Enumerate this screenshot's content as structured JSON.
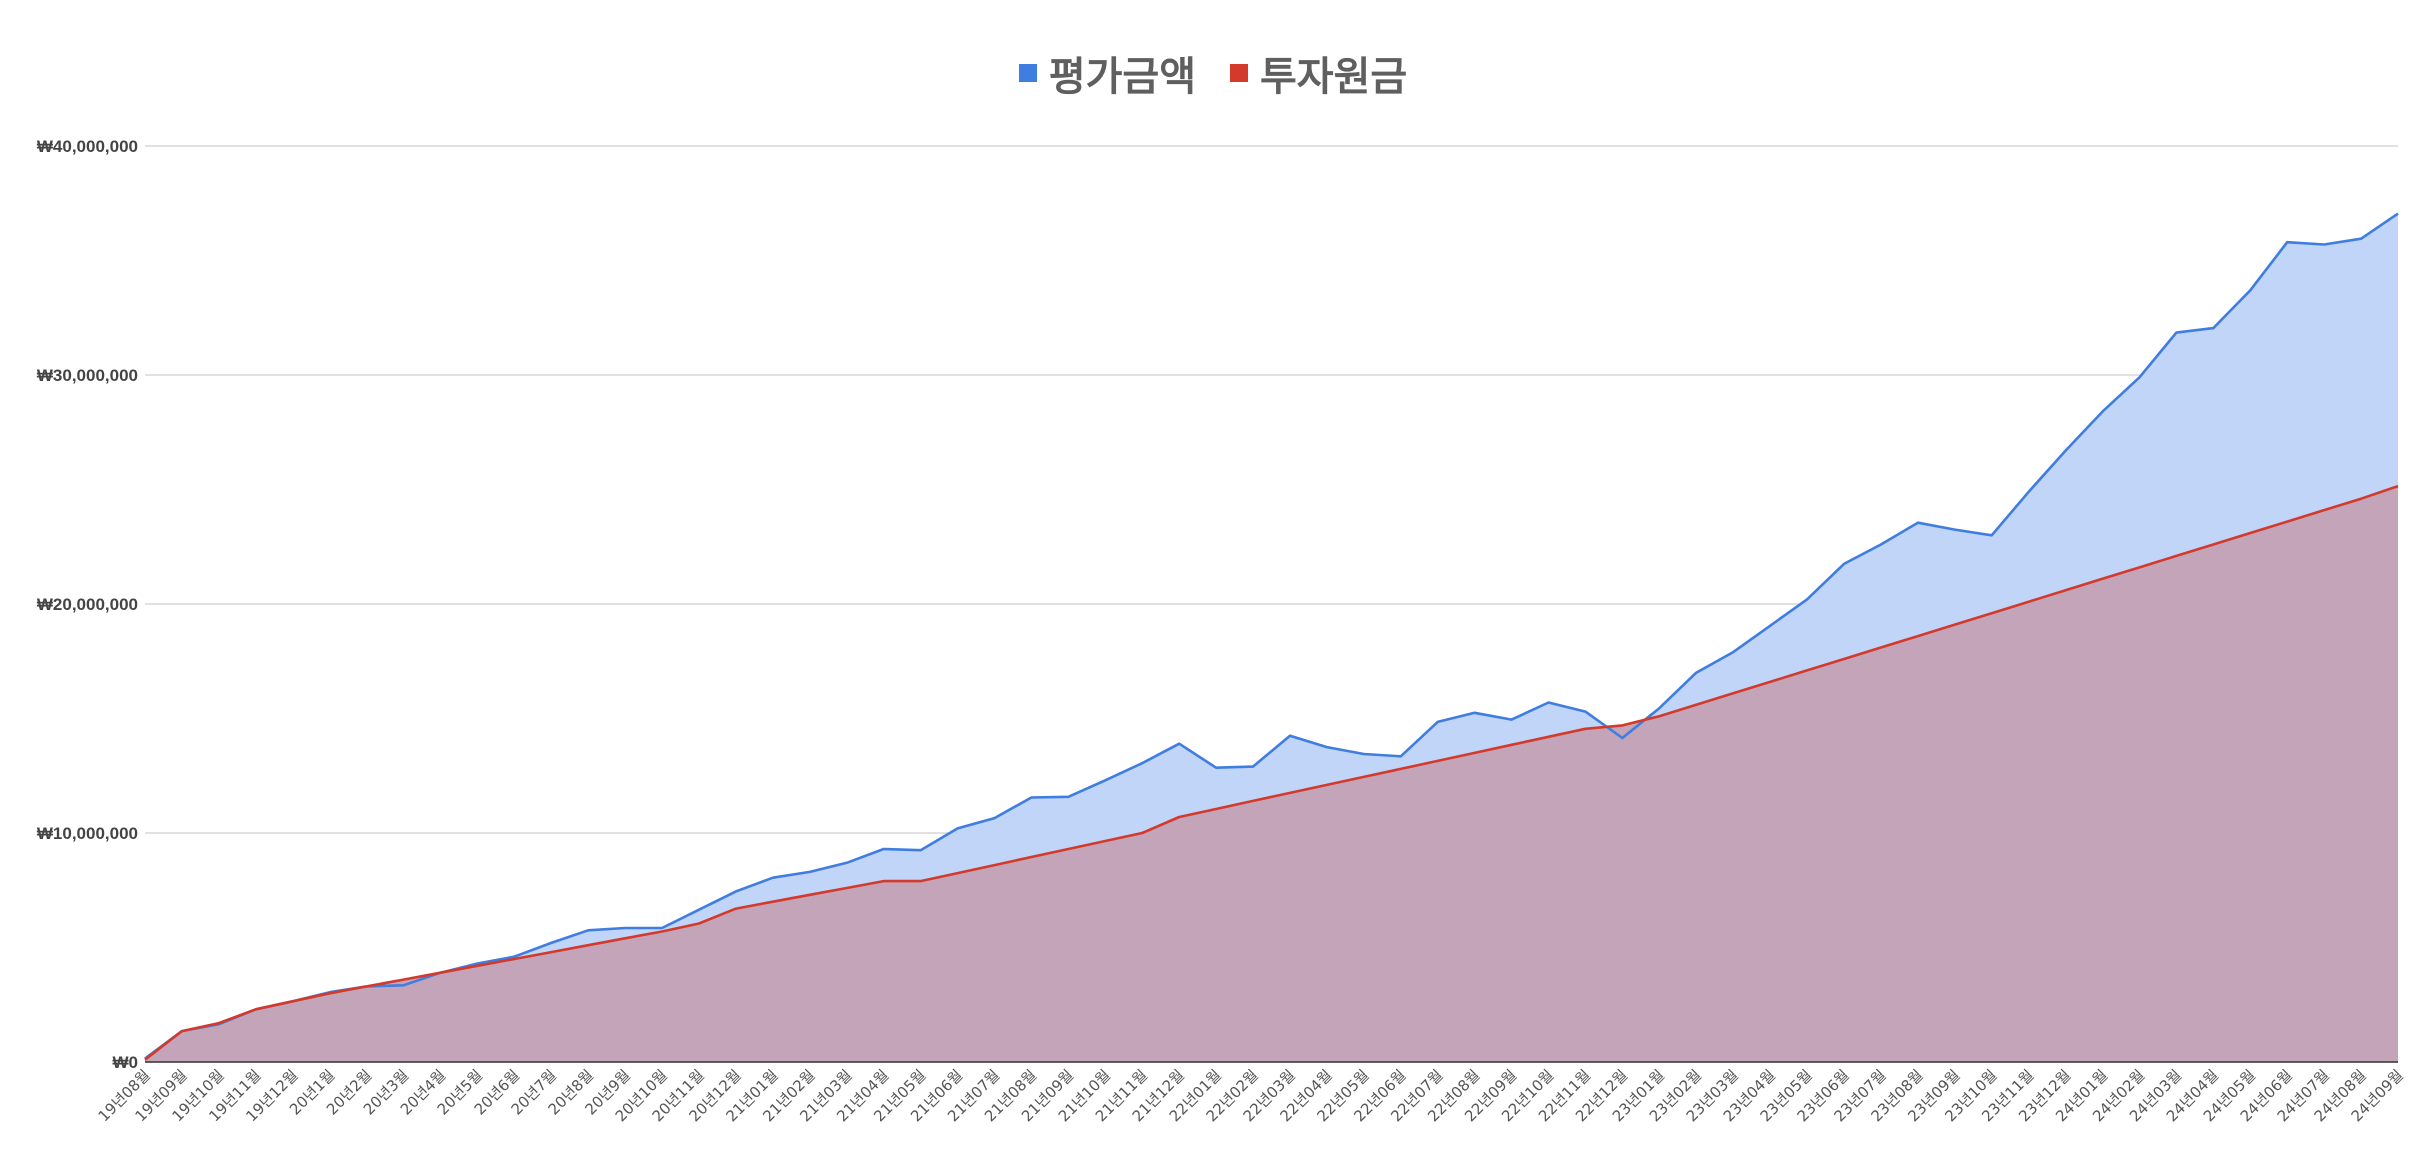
{
  "legend": {
    "series1_label": "평가금액",
    "series2_label": "투자원금"
  },
  "colors": {
    "series1_line": "#3f7de0",
    "series1_fill": "#c1d5f8",
    "series2_line": "#d33a2c",
    "series2_fill": "#c4a4b8",
    "grid": "#cfcfcf"
  },
  "chart_data": {
    "type": "area",
    "title": "",
    "xlabel": "",
    "ylabel": "",
    "ylim": [
      0,
      40000000
    ],
    "yticks": [
      0,
      10000000,
      20000000,
      30000000,
      40000000
    ],
    "ytick_labels": [
      "₩0",
      "₩10,000,000",
      "₩20,000,000",
      "₩30,000,000",
      "₩40,000,000"
    ],
    "grid": true,
    "legend_position": "top-center",
    "categories": [
      "19년08월",
      "19년09월",
      "19년10월",
      "19년11월",
      "19년12월",
      "20년1월",
      "20년2월",
      "20년3월",
      "20년4월",
      "20년5월",
      "20년6월",
      "20년7월",
      "20년8월",
      "20년9월",
      "20년10월",
      "20년11월",
      "20년12월",
      "21년01월",
      "21년02월",
      "21년03월",
      "21년04월",
      "21년05월",
      "21년06월",
      "21년07월",
      "21년08월",
      "21년09월",
      "21년10월",
      "21년11월",
      "21년12월",
      "22년01월",
      "22년02월",
      "22년03월",
      "22년04월",
      "22년05월",
      "22년06월",
      "22년07월",
      "22년08월",
      "22년09월",
      "22년10월",
      "22년11월",
      "22년12월",
      "23년01월",
      "23년02월",
      "23년03월",
      "23년04월",
      "23년05월",
      "23년06월",
      "23년07월",
      "23년08월",
      "23년09월",
      "23년10월",
      "23년11월",
      "23년12월",
      "24년01월",
      "24년02월",
      "24년03월",
      "24년04월",
      "24년05월",
      "24년06월",
      "24년07월",
      "24년08월",
      "24년09월"
    ],
    "series": [
      {
        "name": "평가금액",
        "values": [
          150000,
          1350000,
          1650000,
          2300000,
          2650000,
          3050000,
          3300000,
          3350000,
          3900000,
          4300000,
          4600000,
          5200000,
          5750000,
          5850000,
          5850000,
          6650000,
          7450000,
          8050000,
          8300000,
          8700000,
          9300000,
          9250000,
          10200000,
          10650000,
          11550000,
          11580000,
          12300000,
          13050000,
          13900000,
          12850000,
          12900000,
          14250000,
          13750000,
          13450000,
          13350000,
          14850000,
          15250000,
          14950000,
          15700000,
          15300000,
          14150000,
          15450000,
          17000000,
          17900000,
          19050000,
          20200000,
          21750000,
          22600000,
          23550000,
          23250000,
          23000000,
          24900000,
          26700000,
          28400000,
          29900000,
          31850000,
          32050000,
          33700000,
          35800000,
          35700000,
          35950000,
          37050000
        ]
      },
      {
        "name": "투자원금",
        "values": [
          100000,
          1350000,
          1700000,
          2300000,
          2650000,
          3000000,
          3300000,
          3600000,
          3900000,
          4200000,
          4500000,
          4800000,
          5100000,
          5400000,
          5700000,
          6050000,
          6700000,
          7000000,
          7300000,
          7600000,
          7900000,
          7900000,
          8250000,
          8600000,
          8950000,
          9300000,
          9650000,
          10000000,
          10700000,
          11050000,
          11400000,
          11750000,
          12100000,
          12450000,
          12800000,
          13150000,
          13500000,
          13850000,
          14200000,
          14550000,
          14700000,
          15100000,
          15600000,
          16100000,
          16600000,
          17100000,
          17600000,
          18100000,
          18600000,
          19100000,
          19600000,
          20100000,
          20600000,
          21100000,
          21600000,
          22100000,
          22600000,
          23100000,
          23600000,
          24100000,
          24600000,
          25150000
        ]
      }
    ]
  }
}
